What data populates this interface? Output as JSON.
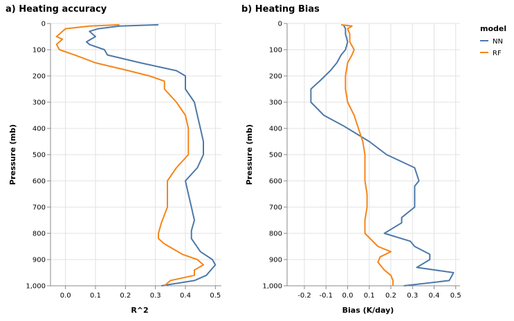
{
  "chart_data": [
    {
      "type": "line",
      "title": "a) Heating accuracy",
      "xlabel": "R^2",
      "ylabel": "Pressure (mb)",
      "xlim": [
        -0.05,
        0.52
      ],
      "ylim": [
        0,
        1000
      ],
      "y_reversed": true,
      "xticks": [
        0.0,
        0.1,
        0.2,
        0.3,
        0.4,
        0.5
      ],
      "xtick_labels": [
        "0.0",
        "0.1",
        "0.2",
        "0.3",
        "0.4",
        "0.5"
      ],
      "yticks": [
        0,
        100,
        200,
        300,
        400,
        500,
        600,
        700,
        800,
        900,
        1000
      ],
      "ytick_labels": [
        "0",
        "100",
        "200",
        "300",
        "400",
        "500",
        "600",
        "700",
        "800",
        "900",
        "1,000"
      ],
      "grid": true,
      "series": [
        {
          "name": "NN",
          "color": "#4c78a8",
          "points": [
            [
              0.31,
              5
            ],
            [
              0.18,
              10
            ],
            [
              0.11,
              20
            ],
            [
              0.08,
              30
            ],
            [
              0.1,
              50
            ],
            [
              0.07,
              70
            ],
            [
              0.08,
              80
            ],
            [
              0.13,
              100
            ],
            [
              0.14,
              120
            ],
            [
              0.25,
              150
            ],
            [
              0.37,
              180
            ],
            [
              0.4,
              200
            ],
            [
              0.4,
              220
            ],
            [
              0.4,
              250
            ],
            [
              0.43,
              300
            ],
            [
              0.44,
              350
            ],
            [
              0.45,
              400
            ],
            [
              0.46,
              450
            ],
            [
              0.46,
              500
            ],
            [
              0.44,
              550
            ],
            [
              0.4,
              600
            ],
            [
              0.41,
              650
            ],
            [
              0.42,
              700
            ],
            [
              0.43,
              750
            ],
            [
              0.42,
              790
            ],
            [
              0.42,
              820
            ],
            [
              0.45,
              870
            ],
            [
              0.49,
              900
            ],
            [
              0.5,
              920
            ],
            [
              0.47,
              960
            ],
            [
              0.43,
              980
            ],
            [
              0.32,
              1000
            ]
          ]
        },
        {
          "name": "RF",
          "color": "#f58518",
          "points": [
            [
              0.18,
              5
            ],
            [
              0.08,
              10
            ],
            [
              0.0,
              20
            ],
            [
              -0.02,
              40
            ],
            [
              -0.03,
              50
            ],
            [
              -0.01,
              60
            ],
            [
              -0.03,
              80
            ],
            [
              -0.02,
              100
            ],
            [
              0.03,
              120
            ],
            [
              0.1,
              150
            ],
            [
              0.21,
              180
            ],
            [
              0.28,
              200
            ],
            [
              0.33,
              220
            ],
            [
              0.33,
              250
            ],
            [
              0.37,
              300
            ],
            [
              0.4,
              350
            ],
            [
              0.41,
              400
            ],
            [
              0.41,
              450
            ],
            [
              0.41,
              500
            ],
            [
              0.37,
              550
            ],
            [
              0.34,
              600
            ],
            [
              0.34,
              650
            ],
            [
              0.34,
              700
            ],
            [
              0.32,
              760
            ],
            [
              0.31,
              800
            ],
            [
              0.31,
              820
            ],
            [
              0.33,
              840
            ],
            [
              0.39,
              880
            ],
            [
              0.44,
              900
            ],
            [
              0.46,
              920
            ],
            [
              0.43,
              940
            ],
            [
              0.43,
              960
            ],
            [
              0.35,
              980
            ],
            [
              0.33,
              1000
            ]
          ]
        }
      ]
    },
    {
      "type": "line",
      "title": "b) Heating Bias",
      "xlabel": "Bias (K/day)",
      "ylabel": "Pressure (mb)",
      "xlim": [
        -0.28,
        0.52
      ],
      "ylim": [
        0,
        1000
      ],
      "y_reversed": true,
      "xticks": [
        -0.2,
        -0.1,
        0.0,
        0.1,
        0.2,
        0.3,
        0.4,
        0.5
      ],
      "xtick_labels": [
        "-0.2",
        "-0.1",
        "0.0",
        "0.1",
        "0.2",
        "0.3",
        "0.4",
        "0.5"
      ],
      "yticks": [
        0,
        100,
        200,
        300,
        400,
        500,
        600,
        700,
        800,
        900,
        1000
      ],
      "ytick_labels": [
        "0",
        "100",
        "200",
        "300",
        "400",
        "500",
        "600",
        "700",
        "800",
        "900",
        "1,000"
      ],
      "grid": true,
      "series": [
        {
          "name": "NN",
          "color": "#4c78a8",
          "points": [
            [
              -0.02,
              5
            ],
            [
              -0.01,
              20
            ],
            [
              -0.01,
              40
            ],
            [
              0.0,
              70
            ],
            [
              -0.01,
              100
            ],
            [
              -0.03,
              120
            ],
            [
              -0.05,
              150
            ],
            [
              -0.08,
              180
            ],
            [
              -0.13,
              220
            ],
            [
              -0.17,
              250
            ],
            [
              -0.17,
              300
            ],
            [
              -0.11,
              350
            ],
            [
              -0.02,
              390
            ],
            [
              0.1,
              450
            ],
            [
              0.18,
              500
            ],
            [
              0.31,
              550
            ],
            [
              0.33,
              600
            ],
            [
              0.31,
              620
            ],
            [
              0.31,
              650
            ],
            [
              0.31,
              700
            ],
            [
              0.25,
              740
            ],
            [
              0.25,
              760
            ],
            [
              0.17,
              800
            ],
            [
              0.29,
              830
            ],
            [
              0.31,
              850
            ],
            [
              0.38,
              880
            ],
            [
              0.38,
              900
            ],
            [
              0.32,
              930
            ],
            [
              0.49,
              950
            ],
            [
              0.47,
              980
            ],
            [
              0.26,
              1000
            ]
          ]
        },
        {
          "name": "RF",
          "color": "#f58518",
          "points": [
            [
              -0.03,
              5
            ],
            [
              0.02,
              10
            ],
            [
              0.0,
              20
            ],
            [
              0.01,
              40
            ],
            [
              0.01,
              70
            ],
            [
              0.03,
              100
            ],
            [
              0.02,
              120
            ],
            [
              0.0,
              150
            ],
            [
              -0.01,
              200
            ],
            [
              -0.01,
              250
            ],
            [
              0.0,
              300
            ],
            [
              0.03,
              350
            ],
            [
              0.05,
              400
            ],
            [
              0.07,
              450
            ],
            [
              0.08,
              500
            ],
            [
              0.08,
              550
            ],
            [
              0.08,
              600
            ],
            [
              0.09,
              650
            ],
            [
              0.09,
              700
            ],
            [
              0.08,
              750
            ],
            [
              0.08,
              800
            ],
            [
              0.14,
              850
            ],
            [
              0.2,
              870
            ],
            [
              0.15,
              890
            ],
            [
              0.14,
              910
            ],
            [
              0.17,
              940
            ],
            [
              0.2,
              960
            ],
            [
              0.21,
              980
            ],
            [
              0.21,
              1000
            ]
          ]
        }
      ]
    }
  ],
  "legend": {
    "title": "model",
    "items": [
      {
        "label": "NN",
        "color": "#4c78a8"
      },
      {
        "label": "RF",
        "color": "#f58518"
      }
    ]
  }
}
